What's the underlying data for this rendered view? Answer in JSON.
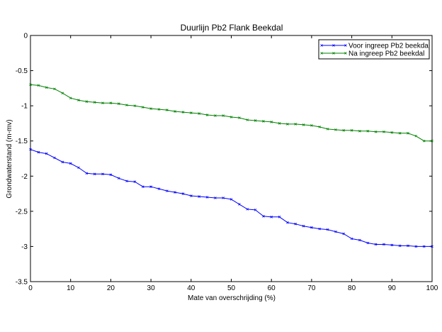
{
  "chart_data": {
    "type": "line",
    "title": "Duurlijn Pb2 Flank Beekdal",
    "xlabel": "Mate van overschrijding (%)",
    "ylabel": "Grondwaterstand (m-mv)",
    "xlim": [
      0,
      100
    ],
    "ylim": [
      -3.5,
      0
    ],
    "xticks": [
      0,
      10,
      20,
      30,
      40,
      50,
      60,
      70,
      80,
      90,
      100
    ],
    "yticks": [
      0,
      -0.5,
      -1,
      -1.5,
      -2,
      -2.5,
      -3,
      -3.5
    ],
    "xtick_labels": [
      "0",
      "10",
      "20",
      "30",
      "40",
      "50",
      "60",
      "70",
      "80",
      "90",
      "100"
    ],
    "ytick_labels": [
      "0",
      "-0.5",
      "-1",
      "-1.5",
      "-2",
      "-2.5",
      "-3",
      "-3.5"
    ],
    "grid": false,
    "legend_position": "top-right",
    "series": [
      {
        "name": "Voor ingreep Pb2 beekdal",
        "color": "#0000ff",
        "marker": "x",
        "x": [
          0,
          2,
          4,
          6,
          8,
          10,
          12,
          14,
          16,
          18,
          20,
          22,
          24,
          26,
          28,
          30,
          32,
          34,
          36,
          38,
          40,
          42,
          44,
          46,
          48,
          50,
          52,
          54,
          56,
          58,
          60,
          62,
          64,
          66,
          68,
          70,
          72,
          74,
          76,
          78,
          80,
          82,
          84,
          86,
          88,
          90,
          92,
          94,
          96,
          98,
          100
        ],
        "y": [
          -1.62,
          -1.66,
          -1.68,
          -1.74,
          -1.8,
          -1.82,
          -1.88,
          -1.96,
          -1.97,
          -1.97,
          -1.98,
          -2.03,
          -2.07,
          -2.08,
          -2.15,
          -2.15,
          -2.18,
          -2.21,
          -2.23,
          -2.25,
          -2.28,
          -2.29,
          -2.3,
          -2.31,
          -2.31,
          -2.33,
          -2.4,
          -2.47,
          -2.48,
          -2.57,
          -2.58,
          -2.58,
          -2.66,
          -2.68,
          -2.71,
          -2.73,
          -2.75,
          -2.76,
          -2.79,
          -2.82,
          -2.89,
          -2.91,
          -2.95,
          -2.97,
          -2.97,
          -2.98,
          -2.99,
          -2.99,
          -3.0,
          -3.0,
          -3.0
        ]
      },
      {
        "name": "Na ingreep Pb2 beekdal",
        "color": "#008000",
        "marker": "x",
        "x": [
          0,
          2,
          4,
          6,
          8,
          10,
          12,
          14,
          16,
          18,
          20,
          22,
          24,
          26,
          28,
          30,
          32,
          34,
          36,
          38,
          40,
          42,
          44,
          46,
          48,
          50,
          52,
          54,
          56,
          58,
          60,
          62,
          64,
          66,
          68,
          70,
          72,
          74,
          76,
          78,
          80,
          82,
          84,
          86,
          88,
          90,
          92,
          94,
          96,
          98,
          100
        ],
        "y": [
          -0.7,
          -0.71,
          -0.74,
          -0.76,
          -0.82,
          -0.89,
          -0.92,
          -0.94,
          -0.95,
          -0.96,
          -0.96,
          -0.97,
          -0.99,
          -1.0,
          -1.02,
          -1.04,
          -1.05,
          -1.06,
          -1.08,
          -1.09,
          -1.1,
          -1.11,
          -1.13,
          -1.14,
          -1.14,
          -1.16,
          -1.17,
          -1.2,
          -1.21,
          -1.22,
          -1.23,
          -1.25,
          -1.26,
          -1.26,
          -1.27,
          -1.28,
          -1.3,
          -1.33,
          -1.34,
          -1.35,
          -1.35,
          -1.36,
          -1.36,
          -1.37,
          -1.37,
          -1.38,
          -1.39,
          -1.39,
          -1.43,
          -1.5,
          -1.5
        ]
      }
    ]
  }
}
